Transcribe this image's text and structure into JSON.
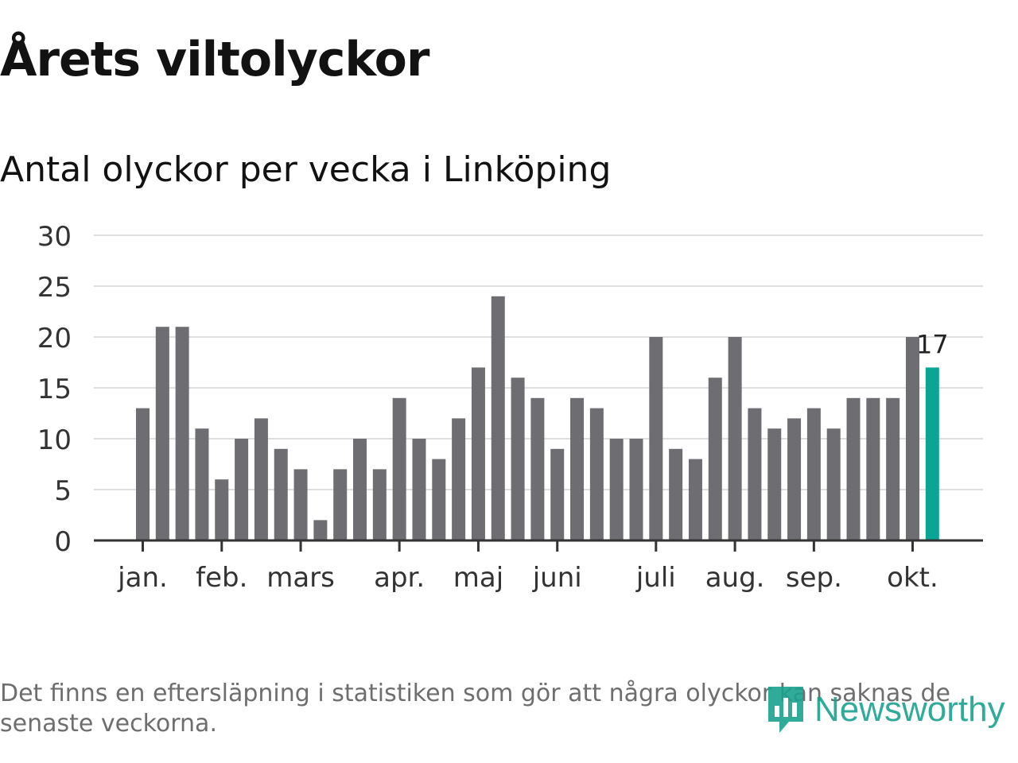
{
  "header": {
    "title": "Årets viltolyckor",
    "subtitle": "Antal olyckor per vecka i Linköping"
  },
  "chart_data": {
    "type": "bar",
    "title": "Årets viltolyckor",
    "subtitle": "Antal olyckor per vecka i Linköping",
    "xlabel": "",
    "ylabel": "",
    "ylim": [
      0,
      30
    ],
    "yticks": [
      0,
      5,
      10,
      15,
      20,
      25,
      30
    ],
    "grid": true,
    "values": [
      13,
      21,
      21,
      11,
      6,
      10,
      12,
      9,
      7,
      2,
      7,
      10,
      7,
      14,
      10,
      8,
      12,
      17,
      24,
      16,
      14,
      9,
      14,
      13,
      10,
      10,
      20,
      9,
      8,
      16,
      20,
      13,
      11,
      12,
      13,
      11,
      14,
      14,
      14,
      20,
      17
    ],
    "month_ticks": [
      {
        "label": "jan.",
        "week_index": 0
      },
      {
        "label": "feb.",
        "week_index": 4
      },
      {
        "label": "mars",
        "week_index": 8
      },
      {
        "label": "apr.",
        "week_index": 13
      },
      {
        "label": "maj",
        "week_index": 17
      },
      {
        "label": "juni",
        "week_index": 21
      },
      {
        "label": "juli",
        "week_index": 26
      },
      {
        "label": "aug.",
        "week_index": 30
      },
      {
        "label": "sep.",
        "week_index": 34
      },
      {
        "label": "okt.",
        "week_index": 39
      }
    ],
    "highlight": {
      "week_index": 40,
      "label": "17"
    },
    "colors": {
      "bar": "#6e6d72",
      "highlight": "#0aa593",
      "grid": "#dedede",
      "axis": "#333333",
      "tick_text": "#333333"
    }
  },
  "footer": {
    "note": "Det finns en eftersläpning i statistiken som gör att några olyckor kan saknas de senaste veckorna.",
    "brand": "Newsworthy",
    "brand_icon": "newsworthy-logo-icon"
  }
}
